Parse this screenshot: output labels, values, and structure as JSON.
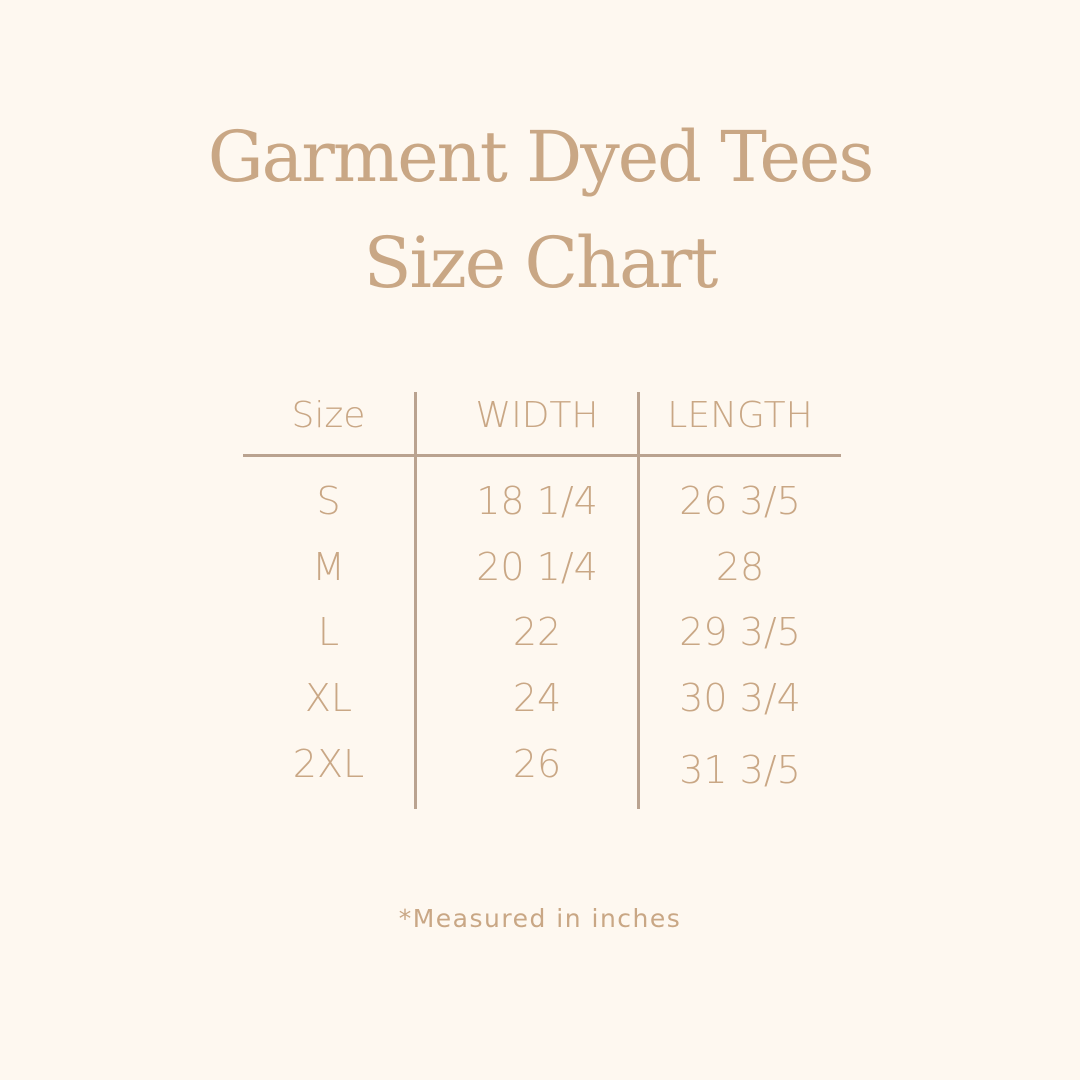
{
  "title_line1": "Garment Dyed Tees",
  "title_line2": "Size Chart",
  "table": {
    "headers": [
      "Size",
      "WIDTH",
      "LENGTH"
    ],
    "rows": [
      [
        "S",
        "18 1/4",
        "26 3/5"
      ],
      [
        "M",
        "20 1/4",
        "28"
      ],
      [
        "L",
        "22",
        "29 3/5"
      ],
      [
        "XL",
        "24",
        "30 3/4"
      ],
      [
        "2XL",
        "26",
        "31 3/5"
      ]
    ]
  },
  "note": "*Measured in inches",
  "colors": {
    "background": "#fef8f0",
    "text": "#c9a785",
    "lines": "#baa390"
  }
}
